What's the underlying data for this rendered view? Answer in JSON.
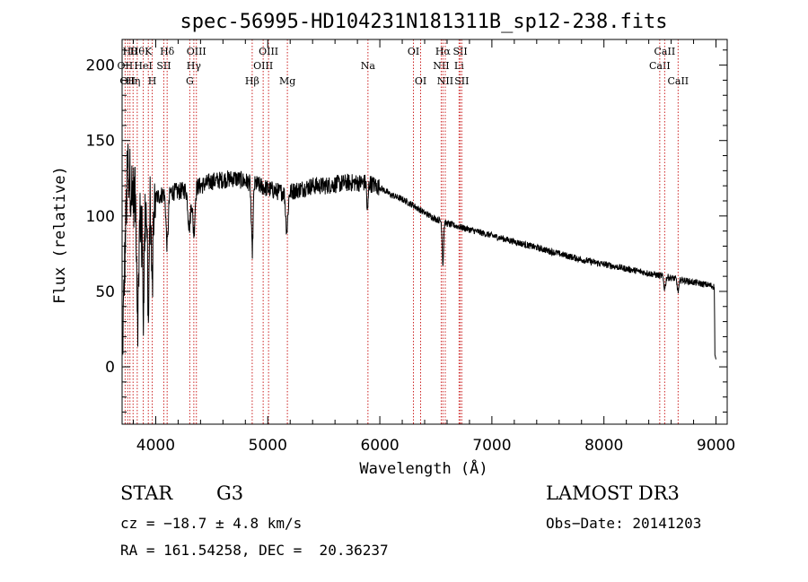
{
  "chart_data": {
    "type": "line",
    "title": "spec-56995-HD104231N181311B_sp12-238.fits",
    "xlabel": "Wavelength (Å)",
    "ylabel": "Flux (relative)",
    "xlim": [
      3700,
      9100
    ],
    "ylim": [
      -38,
      217
    ],
    "xticks": [
      4000,
      5000,
      6000,
      7000,
      8000,
      9000
    ],
    "yticks": [
      0,
      50,
      100,
      150,
      200
    ],
    "line_color": "#000000",
    "marker_color": "#cc2222",
    "continuum": {
      "x": [
        3700,
        3720,
        3750,
        3780,
        3820,
        3860,
        3900,
        3950,
        4000,
        4050,
        4100,
        4200,
        4300,
        4400,
        4500,
        4600,
        4700,
        4800,
        4900,
        5000,
        5100,
        5200,
        5300,
        5400,
        5500,
        5600,
        5700,
        5800,
        5900,
        6000,
        6100,
        6200,
        6300,
        6400,
        6500,
        6600,
        6700,
        6800,
        6900,
        7000,
        7200,
        7400,
        7600,
        7800,
        8000,
        8200,
        8400,
        8600,
        8800,
        8950,
        8985,
        8990,
        9000
      ],
      "y": [
        0,
        60,
        135,
        120,
        110,
        100,
        105,
        110,
        112,
        114,
        116,
        116,
        118,
        120,
        123,
        124,
        125,
        123,
        121,
        118,
        116,
        116,
        118,
        120,
        120,
        121,
        122,
        122,
        122,
        119,
        114,
        111,
        107,
        102,
        98,
        95,
        93,
        91,
        89,
        87,
        83,
        79,
        75,
        71,
        68,
        65,
        62,
        59,
        56,
        54,
        53,
        8,
        5
      ]
    },
    "absorption_lines": [
      {
        "center": 3840,
        "width": 8,
        "depth": 70
      },
      {
        "center": 3890,
        "width": 8,
        "depth": 55
      },
      {
        "center": 3934,
        "width": 6,
        "depth": 80
      },
      {
        "center": 3969,
        "width": 6,
        "depth": 75
      },
      {
        "center": 4102,
        "width": 10,
        "depth": 35
      },
      {
        "center": 4300,
        "width": 12,
        "depth": 25
      },
      {
        "center": 4340,
        "width": 10,
        "depth": 30
      },
      {
        "center": 4861,
        "width": 8,
        "depth": 45
      },
      {
        "center": 5170,
        "width": 10,
        "depth": 25
      },
      {
        "center": 5890,
        "width": 6,
        "depth": 20
      },
      {
        "center": 6563,
        "width": 6,
        "depth": 28
      },
      {
        "center": 8542,
        "width": 8,
        "depth": 8
      },
      {
        "center": 8662,
        "width": 8,
        "depth": 8
      }
    ],
    "spectral_lines": [
      {
        "wavelength": 3727,
        "label": "OII",
        "row": 1
      },
      {
        "wavelength": 3750,
        "label": "OII",
        "row": 2
      },
      {
        "wavelength": 3770,
        "label": "Hθ",
        "row": 0
      },
      {
        "wavelength": 3798,
        "label": "Hη",
        "row": 2
      },
      {
        "wavelength": 3835,
        "label": "Hθ",
        "row": 0
      },
      {
        "wavelength": 3889,
        "label": "HeI",
        "row": 1
      },
      {
        "wavelength": 3934,
        "label": "K",
        "row": 0
      },
      {
        "wavelength": 3969,
        "label": "H",
        "row": 2
      },
      {
        "wavelength": 4072,
        "label": "SII",
        "row": 1
      },
      {
        "wavelength": 4102,
        "label": "Hδ",
        "row": 0
      },
      {
        "wavelength": 4304,
        "label": "G",
        "row": 2
      },
      {
        "wavelength": 4340,
        "label": "Hγ",
        "row": 1
      },
      {
        "wavelength": 4363,
        "label": "OIII",
        "row": 0
      },
      {
        "wavelength": 4861,
        "label": "Hβ",
        "row": 2
      },
      {
        "wavelength": 4959,
        "label": "OIII",
        "row": 1
      },
      {
        "wavelength": 5007,
        "label": "OIII",
        "row": 0
      },
      {
        "wavelength": 5175,
        "label": "Mg",
        "row": 2
      },
      {
        "wavelength": 5894,
        "label": "Na",
        "row": 1
      },
      {
        "wavelength": 6300,
        "label": "OI",
        "row": 0
      },
      {
        "wavelength": 6364,
        "label": "OI",
        "row": 2
      },
      {
        "wavelength": 6548,
        "label": "NII",
        "row": 1
      },
      {
        "wavelength": 6563,
        "label": "Hα",
        "row": 0
      },
      {
        "wavelength": 6584,
        "label": "NII",
        "row": 2
      },
      {
        "wavelength": 6707,
        "label": "Li",
        "row": 1
      },
      {
        "wavelength": 6717,
        "label": "SII",
        "row": 0
      },
      {
        "wavelength": 6731,
        "label": "SII",
        "row": 2
      },
      {
        "wavelength": 8498,
        "label": "CaII",
        "row": 1
      },
      {
        "wavelength": 8542,
        "label": "CaII",
        "row": 0
      },
      {
        "wavelength": 8662,
        "label": "CaII",
        "row": 2
      }
    ]
  },
  "info": {
    "object_class": "STAR",
    "subclass": "G3",
    "survey": "LAMOST DR3",
    "cz": "cz = −18.7 ± 4.8 km/s",
    "obs_date": "Obs−Date: 20141203",
    "coords": "RA = 161.54258, DEC =  20.36237"
  }
}
